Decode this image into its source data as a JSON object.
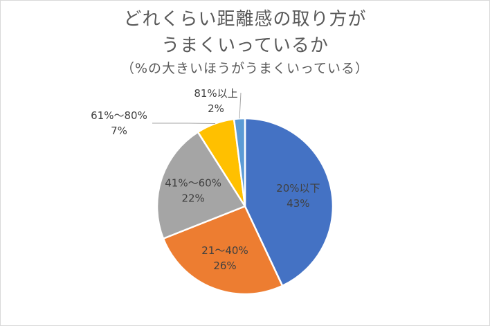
{
  "chart_data": {
    "type": "pie",
    "title_lines": [
      "どれくらい距離感の取り方が",
      "うまくいっているか"
    ],
    "subtitle": "（%の大きいほうがうまくいっている）",
    "slices": [
      {
        "label": "20%以下",
        "value": 43,
        "value_label": "43%",
        "color": "#4472c4",
        "label_pos": "inside"
      },
      {
        "label": "21〜40%",
        "value": 26,
        "value_label": "26%",
        "color": "#ed7d31",
        "label_pos": "inside"
      },
      {
        "label": "41%〜60%",
        "value": 22,
        "value_label": "22%",
        "color": "#a5a5a5",
        "label_pos": "inside"
      },
      {
        "label": "61%〜80%",
        "value": 7,
        "value_label": "7%",
        "color": "#ffc000",
        "label_pos": "outside-left"
      },
      {
        "label": "81%以上",
        "value": 2,
        "value_label": "2%",
        "color": "#5b9bd5",
        "label_pos": "outside-top"
      }
    ],
    "start": "12 o'clock, clockwise",
    "legend": "none"
  }
}
